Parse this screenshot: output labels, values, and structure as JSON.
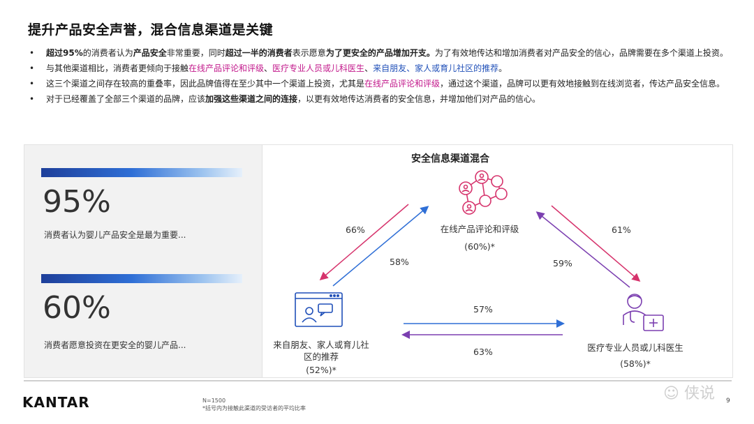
{
  "title": "提升产品安全声誉，混合信息渠道是关键",
  "bullets": [
    {
      "parts": [
        [
          "b",
          "超过95%"
        ],
        [
          "n",
          "的消费者认为"
        ],
        [
          "b",
          "产品安全"
        ],
        [
          "n",
          "非常重要，同时"
        ],
        [
          "b",
          "超过一半的消费者"
        ],
        [
          "n",
          "表示愿意"
        ],
        [
          "b",
          "为了更安全的产品增加开支。"
        ],
        [
          "n",
          "为了有效地传达和增加消费者对产品安全的信心，品牌需要在多个渠道上投资。"
        ]
      ]
    },
    {
      "parts": [
        [
          "n",
          "与其他渠道相比，消费者更倾向于接触"
        ],
        [
          "hl",
          "在线产品评论和评级"
        ],
        [
          "n",
          "、"
        ],
        [
          "hl",
          "医疗专业人员或儿科医生"
        ],
        [
          "n",
          "、"
        ],
        [
          "hlb",
          "来自朋友、家人或育儿社区的推荐"
        ],
        [
          "n",
          "。"
        ]
      ]
    },
    {
      "parts": [
        [
          "n",
          "这三个渠道之间存在较高的重叠率，因此品牌值得在至少其中一个渠道上投资，尤其是"
        ],
        [
          "hl",
          "在线产品评论和评级"
        ],
        [
          "n",
          "，通过这个渠道，品牌可以更有效地接触到在线浏览者，传达产品安全信息。"
        ]
      ]
    },
    {
      "parts": [
        [
          "n",
          "对于已经覆盖了全部三个渠道的品牌，应该"
        ],
        [
          "b",
          "加强这些渠道之间的连接"
        ],
        [
          "n",
          "，以更有效地传达消费者的安全信息，并增加他们对产品的信心。"
        ]
      ]
    }
  ],
  "stats": [
    {
      "value": "95%",
      "label": "消费者认为婴儿产品安全是最为重要..."
    },
    {
      "value": "60%",
      "label": "消费者愿意投资在更安全的婴儿产品..."
    }
  ],
  "diagram": {
    "title": "安全信息渠道混合",
    "nodes": {
      "online": {
        "label": "在线产品评论和评级",
        "pct": "(60%)*",
        "icon": "network-people-icon"
      },
      "friends": {
        "label": "来自朋友、家人或育儿社\n区的推荐",
        "pct": "(52%)*",
        "icon": "chat-window-icon"
      },
      "medical": {
        "label": "医疗专业人员或儿科医生",
        "pct": "(58%)*",
        "icon": "doctor-icon"
      }
    },
    "edges": {
      "online_to_friends": "66%",
      "friends_to_online": "58%",
      "online_to_medical": "61%",
      "medical_to_online": "59%",
      "friends_to_medical": "57%",
      "medical_to_friends": "63%"
    },
    "colors": {
      "pink": "#d6336c",
      "blue": "#2f6fd6",
      "purple": "#7b3fb0"
    }
  },
  "footer": {
    "logo": "KANTAR",
    "n": "N=1500",
    "note": "*括号内为接触此渠道的受访者的平均比率",
    "page": "9",
    "watermark": "侠说"
  }
}
